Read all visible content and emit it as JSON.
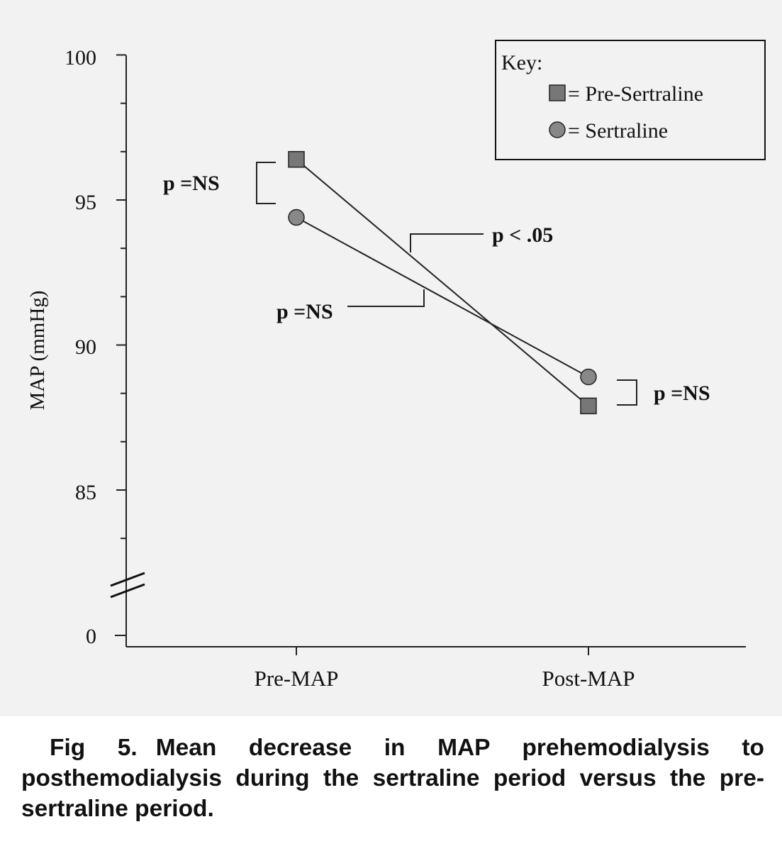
{
  "chart_data": {
    "type": "line",
    "categories": [
      "Pre-MAP",
      "Post-MAP"
    ],
    "series": [
      {
        "name": "Pre-Sertraline",
        "marker": "square",
        "values": [
          96.4,
          87.9
        ],
        "color": "#777777"
      },
      {
        "name": "Sertraline",
        "marker": "circle",
        "values": [
          94.4,
          88.9
        ],
        "color": "#888888"
      }
    ],
    "ylabel": "MAP (mmHg)",
    "yticks": [
      "100",
      "95",
      "90",
      "85",
      "0"
    ],
    "ylim": [
      82,
      100
    ],
    "axis_break": true,
    "grid": false,
    "legend": {
      "title": "Key:",
      "placement": "top-right",
      "entries": [
        "= Pre-Sertraline",
        "= Sertraline"
      ]
    },
    "annotations": [
      {
        "text": "p =NS",
        "compares": "Pre-MAP: Pre-Sertraline vs Sertraline"
      },
      {
        "text": "p < .05",
        "compares": "Pre-Sertraline slope"
      },
      {
        "text": "p =NS",
        "compares": "Sertraline slope"
      },
      {
        "text": "p =NS",
        "compares": "Post-MAP: Pre-Sertraline vs Sertraline"
      }
    ]
  },
  "caption": {
    "number": "Fig 5.",
    "text": "Mean decrease in MAP prehemodialysis to posthemodialysis during the sertraline period versus the pre-sertraline period."
  }
}
